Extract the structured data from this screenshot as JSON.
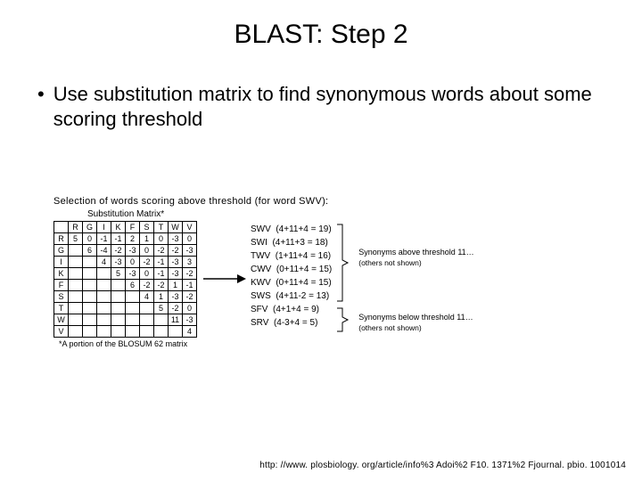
{
  "title": "BLAST: Step 2",
  "bullet_text": "Use substitution matrix to find synonymous words about some scoring threshold",
  "figure": {
    "caption": "Selection of words scoring above threshold (for word SWV):",
    "subcaption": "Substitution Matrix*",
    "matrix": {
      "columns": [
        "R",
        "G",
        "I",
        "K",
        "F",
        "S",
        "T",
        "W",
        "V"
      ],
      "row_labels": [
        "R",
        "G",
        "I",
        "K",
        "F",
        "S",
        "T",
        "W",
        "V"
      ],
      "cells": [
        [
          "5",
          "0",
          "-1",
          "-1",
          "2",
          "1",
          "0",
          "-3",
          "0"
        ],
        [
          "",
          "6",
          "-4",
          "-2",
          "-3",
          "0",
          "-2",
          "-2",
          "-3"
        ],
        [
          "",
          "",
          "4",
          "-3",
          "0",
          "-2",
          "-1",
          "-3",
          "3"
        ],
        [
          "",
          "",
          "",
          "5",
          "-3",
          "0",
          "-1",
          "-3",
          "-2"
        ],
        [
          "",
          "",
          "",
          "",
          "6",
          "-2",
          "-2",
          "1",
          "-1"
        ],
        [
          "",
          "",
          "",
          "",
          "",
          "4",
          "1",
          "-3",
          "-2"
        ],
        [
          "",
          "",
          "",
          "",
          "",
          "",
          "5",
          "-2",
          "0"
        ],
        [
          "",
          "",
          "",
          "",
          "",
          "",
          "",
          "11",
          "-3"
        ],
        [
          "",
          "",
          "",
          "",
          "",
          "",
          "",
          "",
          "4"
        ]
      ],
      "footnote": "*A portion of the BLOSUM 62 matrix"
    },
    "words": [
      {
        "w": "SWV",
        "calc": "(4+11+4 = 19)"
      },
      {
        "w": "SWI",
        "calc": "(4+11+3 = 18)"
      },
      {
        "w": "TWV",
        "calc": "(1+11+4 = 16)"
      },
      {
        "w": "CWV",
        "calc": "(0+11+4 = 15)"
      },
      {
        "w": "KWV",
        "calc": "(0+11+4 = 15)"
      },
      {
        "w": "SWS",
        "calc": "(4+11-2 = 13)"
      },
      {
        "w": "SFV",
        "calc": "(4+1+4 = 9)"
      },
      {
        "w": "SRV",
        "calc": "(4-3+4 = 5)"
      }
    ],
    "note_above_title": "Synonyms above threshold 11…",
    "note_above_sub": "(others not shown)",
    "note_below_title": "Synonyms below threshold 11…",
    "note_below_sub": "(others not shown)"
  },
  "footer": "http: //www. plosbiology. org/article/info%3 Adoi%2 F10. 1371%2 Fjournal. pbio. 1001014",
  "colors": {
    "text": "#000000",
    "background": "#ffffff",
    "border": "#000000"
  }
}
